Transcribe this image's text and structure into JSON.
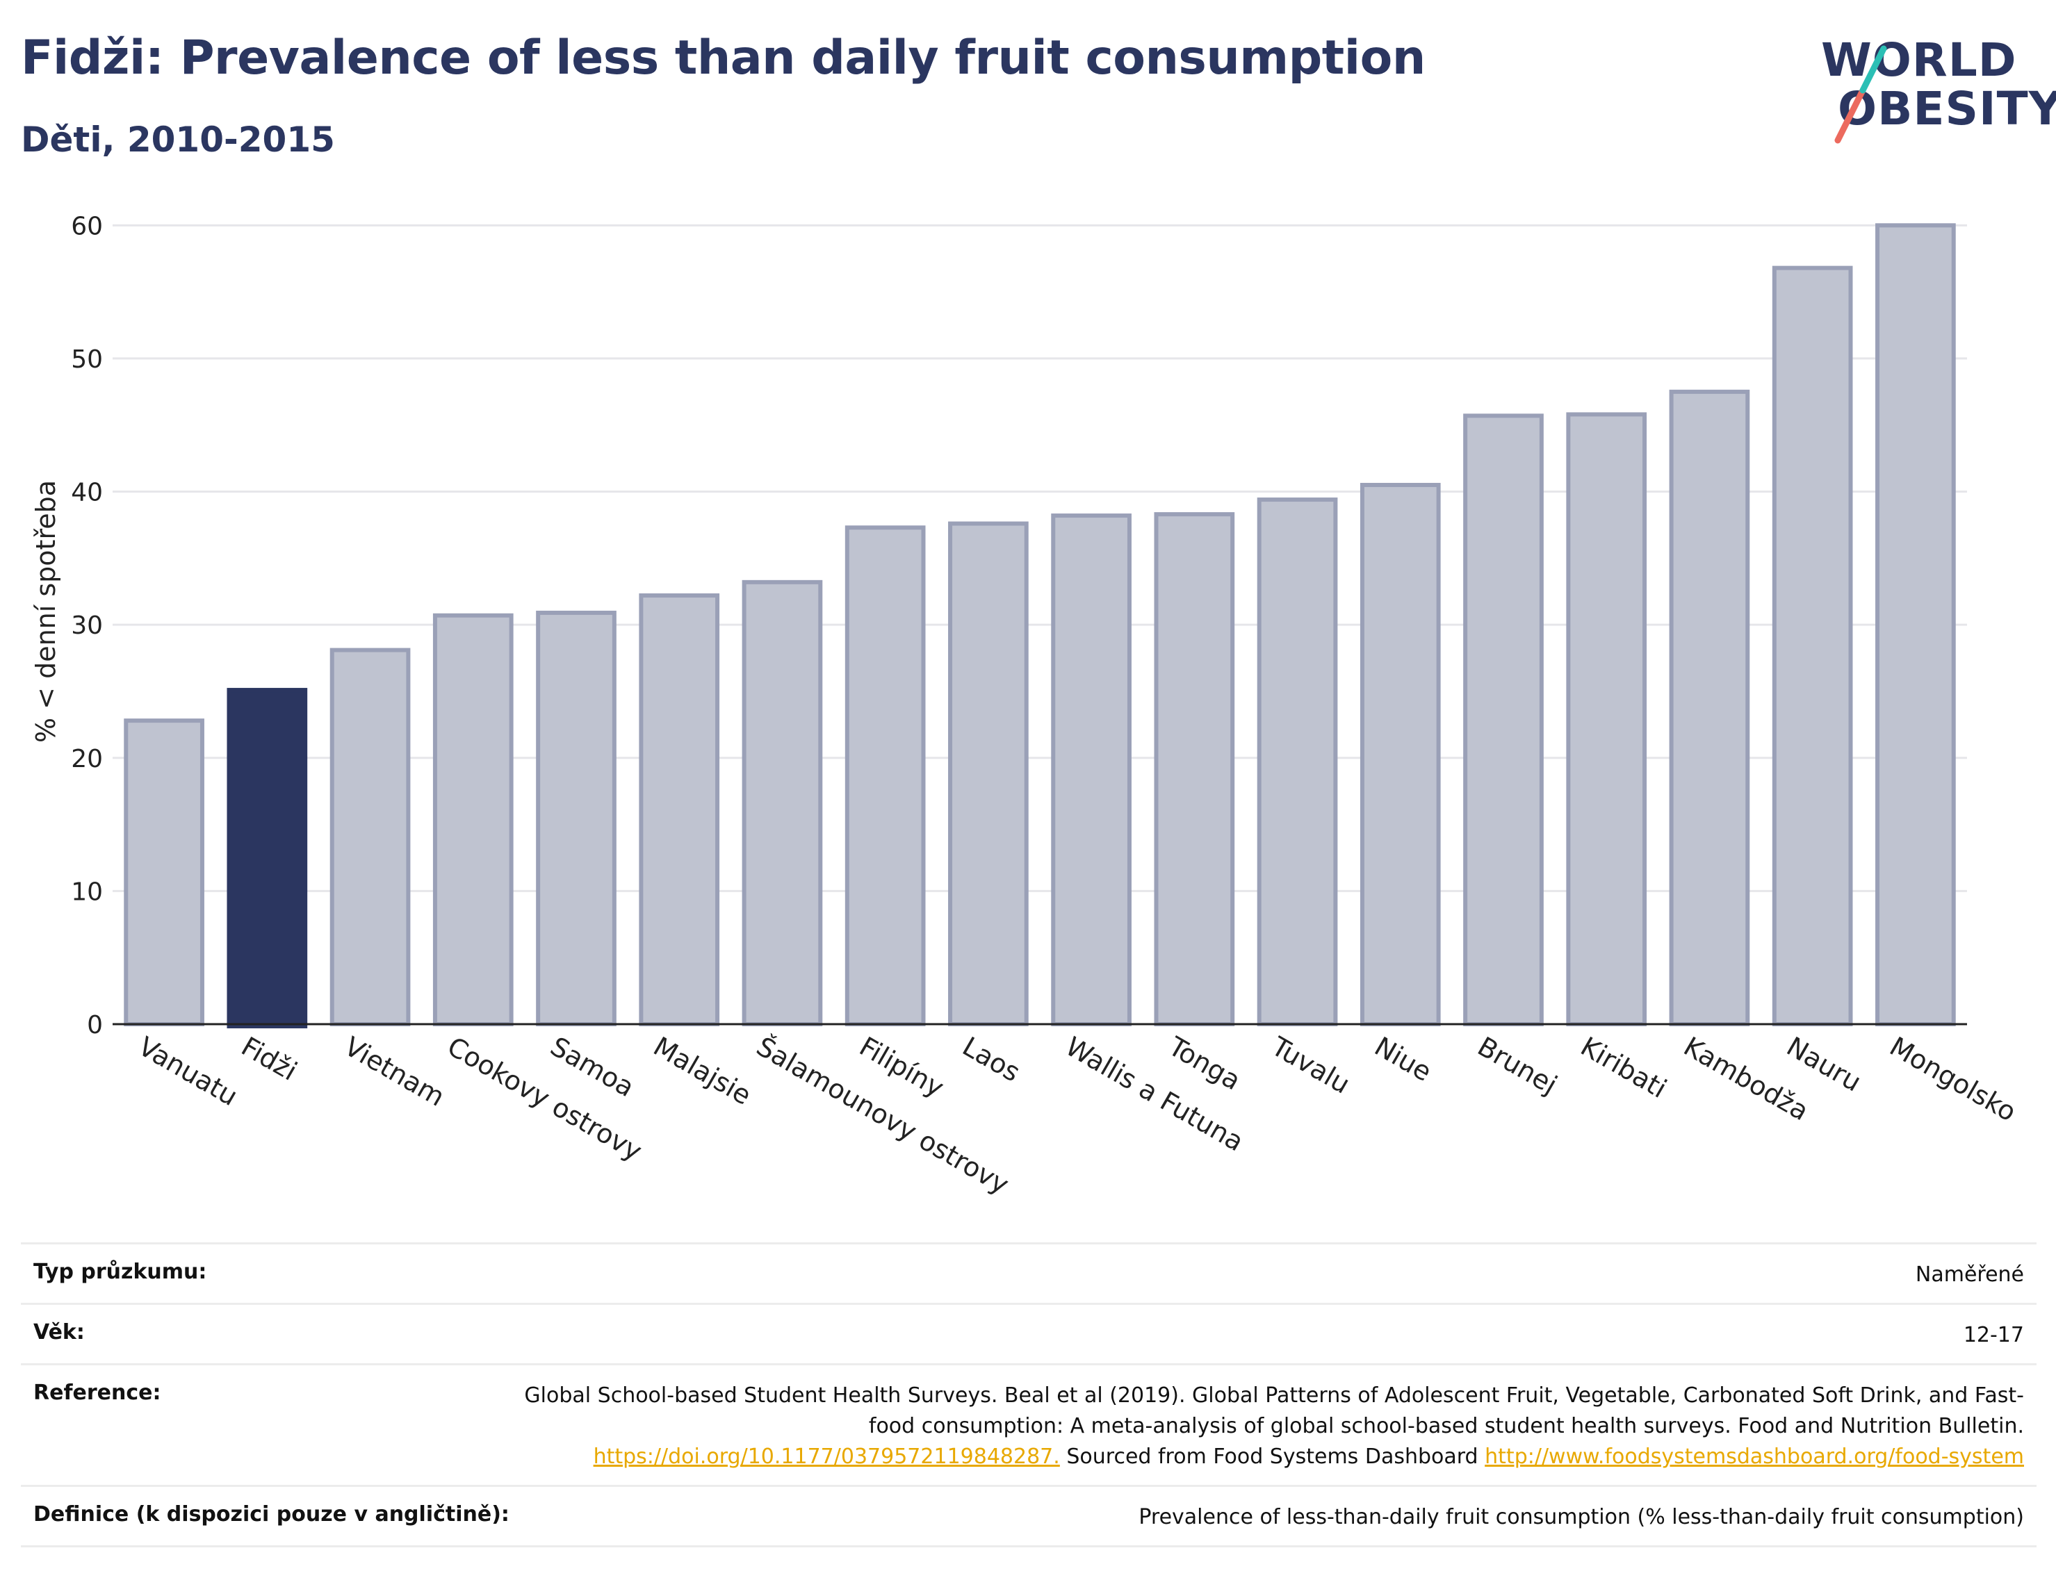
{
  "header": {
    "title": "Fidži: Prevalence of less than daily fruit consumption",
    "subtitle": "Děti, 2010-2015"
  },
  "logo": {
    "line1": "WORLD",
    "line2": "OBESITY",
    "accent_colors": [
      "#2bbfb5",
      "#ec6a5e"
    ]
  },
  "chart_data": {
    "type": "bar",
    "title": "Fidži: Prevalence of less than daily fruit consumption",
    "ylabel": "% < denní spotřeba",
    "xlabel": "",
    "ylim": [
      0,
      62
    ],
    "yticks": [
      0,
      10,
      20,
      30,
      40,
      50,
      60
    ],
    "grid": true,
    "highlight": "Fidži",
    "colors": {
      "bar": "#bfc3d0",
      "bar_edge": "#9aa0b7",
      "highlight": "#2b3660"
    },
    "categories": [
      "Vanuatu",
      "Fidži",
      "Vietnam",
      "Cookovy ostrovy",
      "Samoa",
      "Malajsie",
      "Šalamounovy ostrovy",
      "Filipíny",
      "Laos",
      "Wallis a Futuna",
      "Tonga",
      "Tuvalu",
      "Niue",
      "Brunej",
      "Kiribati",
      "Kambodža",
      "Nauru",
      "Mongolsko"
    ],
    "values": [
      22.8,
      25.1,
      28.1,
      30.7,
      30.9,
      32.2,
      33.2,
      37.3,
      37.6,
      38.2,
      38.3,
      39.4,
      40.5,
      45.7,
      45.8,
      47.5,
      56.8,
      60.0
    ]
  },
  "info": {
    "survey_type_label": "Typ průzkumu:",
    "survey_type_value": "Naměřené",
    "age_label": "Věk:",
    "age_value": "12-17",
    "reference_label": "Reference:",
    "reference_text_1": "Global School-based Student Health Surveys. Beal et al (2019). Global Patterns of Adolescent Fruit, Vegetable, Carbonated Soft Drink, and Fast-food consumption: A meta-analysis of global school-based student health surveys. Food and Nutrition Bulletin.",
    "reference_link_1": "https://doi.org/10.1177/0379572119848287.",
    "reference_text_2": "Sourced from Food Systems Dashboard",
    "reference_link_2": "http://www.foodsystemsdashboard.org/food-system",
    "definition_label": "Definice (k dispozici pouze v angličtině):",
    "definition_value": "Prevalence of less-than-daily fruit consumption (% less-than-daily fruit consumption)"
  }
}
